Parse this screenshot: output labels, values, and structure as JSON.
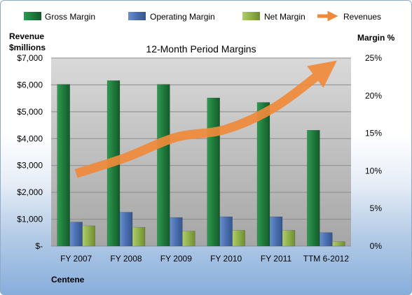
{
  "chart_data": {
    "type": "bar",
    "title": "12-Month Period Margins",
    "company": "Centene",
    "y_left_label_line1": "Revenue",
    "y_left_label_line2": "$millions",
    "y_right_label": "Margin %",
    "categories": [
      "FY 2007",
      "FY 2008",
      "FY 2009",
      "FY 2010",
      "FY 2011",
      "TTM 6-2012"
    ],
    "y_left_ticks": [
      "$-",
      "$1,000",
      "$2,000",
      "$3,000",
      "$4,000",
      "$5,000",
      "$6,000",
      "$7,000"
    ],
    "y_right_ticks": [
      "0%",
      "5%",
      "10%",
      "15%",
      "20%",
      "25%"
    ],
    "ylim_left": [
      0,
      7000
    ],
    "ylim_right": [
      0,
      25
    ],
    "grid": true,
    "legend_position": "top",
    "series": [
      {
        "name": "Gross Margin",
        "kind": "bar",
        "axis": "right",
        "color": "#1f7a3c",
        "values": [
          21.5,
          22.0,
          21.5,
          19.7,
          19.1,
          15.4
        ]
      },
      {
        "name": "Operating Margin",
        "kind": "bar",
        "axis": "right",
        "color": "#4a6fb0",
        "values": [
          3.2,
          4.5,
          3.8,
          3.9,
          3.9,
          1.8
        ]
      },
      {
        "name": "Net Margin",
        "kind": "bar",
        "axis": "right",
        "color": "#8fb04a",
        "values": [
          2.7,
          2.5,
          2.0,
          2.1,
          2.1,
          0.6
        ]
      },
      {
        "name": "Revenues",
        "kind": "line",
        "axis": "left",
        "color": "#f08a3a",
        "values": [
          2700,
          3300,
          4050,
          4350,
          5200,
          6600
        ]
      }
    ]
  }
}
